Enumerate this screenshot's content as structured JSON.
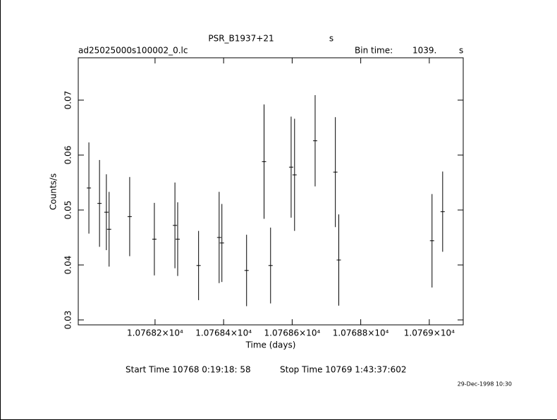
{
  "chart_data": {
    "type": "errorbar",
    "title": "PSR_B1937+21",
    "title_suffix": "s",
    "subtitle": "ad25025000s100002_0.lc",
    "bin_time_label": "Bin time:",
    "bin_time": "1039.",
    "bin_time_unit": "s",
    "xlabel": "Time (days)",
    "ylabel": "Counts/s",
    "start_time": "Start Time 10768  0:19:18: 58",
    "stop_time": "Stop Time 10769  1:43:37:602",
    "timestamp": "29-Dec-1998 10:30",
    "color": "#000000",
    "x": [
      10768.007,
      10768.038,
      10768.058,
      10768.066,
      10768.126,
      10768.198,
      10768.258,
      10768.266,
      10768.327,
      10768.387,
      10768.395,
      10768.467,
      10768.518,
      10768.537,
      10768.597,
      10768.607,
      10768.667,
      10768.726,
      10768.736,
      10769.008,
      10769.039
    ],
    "values": [
      0.054,
      0.0512,
      0.0496,
      0.0465,
      0.0488,
      0.0447,
      0.0472,
      0.0447,
      0.0399,
      0.045,
      0.044,
      0.039,
      0.0588,
      0.0399,
      0.0578,
      0.0564,
      0.0626,
      0.0569,
      0.0409,
      0.0444,
      0.0497
    ],
    "errors": [
      0.0083,
      0.0079,
      0.0069,
      0.0068,
      0.0072,
      0.0066,
      0.0078,
      0.0067,
      0.0063,
      0.0083,
      0.0071,
      0.0065,
      0.0104,
      0.0069,
      0.0092,
      0.0102,
      0.0083,
      0.01,
      0.0083,
      0.0085,
      0.0073
    ],
    "xlim": [
      10767.976,
      10769.099
    ],
    "xticks": [
      {
        "value": 10768.2,
        "label": "1.07682×10⁴"
      },
      {
        "value": 10768.4,
        "label": "1.07684×10⁴"
      },
      {
        "value": 10768.6,
        "label": "1.07686×10⁴"
      },
      {
        "value": 10768.8,
        "label": "1.07688×10⁴"
      },
      {
        "value": 10769.0,
        "label": "1.0769×10⁴"
      }
    ],
    "ylim": [
      0.0291,
      0.0777
    ],
    "yticks": [
      0.03,
      0.04,
      0.05,
      0.06,
      0.07
    ]
  }
}
